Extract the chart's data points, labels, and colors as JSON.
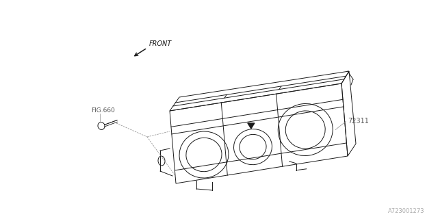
{
  "bg_color": "#ffffff",
  "line_color": "#1a1a1a",
  "label_color": "#555555",
  "part_number": "72311",
  "fig_ref": "FIG.660",
  "front_label": "FRONT",
  "diagram_code": "A723001273",
  "figsize": [
    6.4,
    3.2
  ],
  "dpi": 100,
  "lw": 0.7,
  "dashed_color": "#888888",
  "dashed_lw": 0.5
}
